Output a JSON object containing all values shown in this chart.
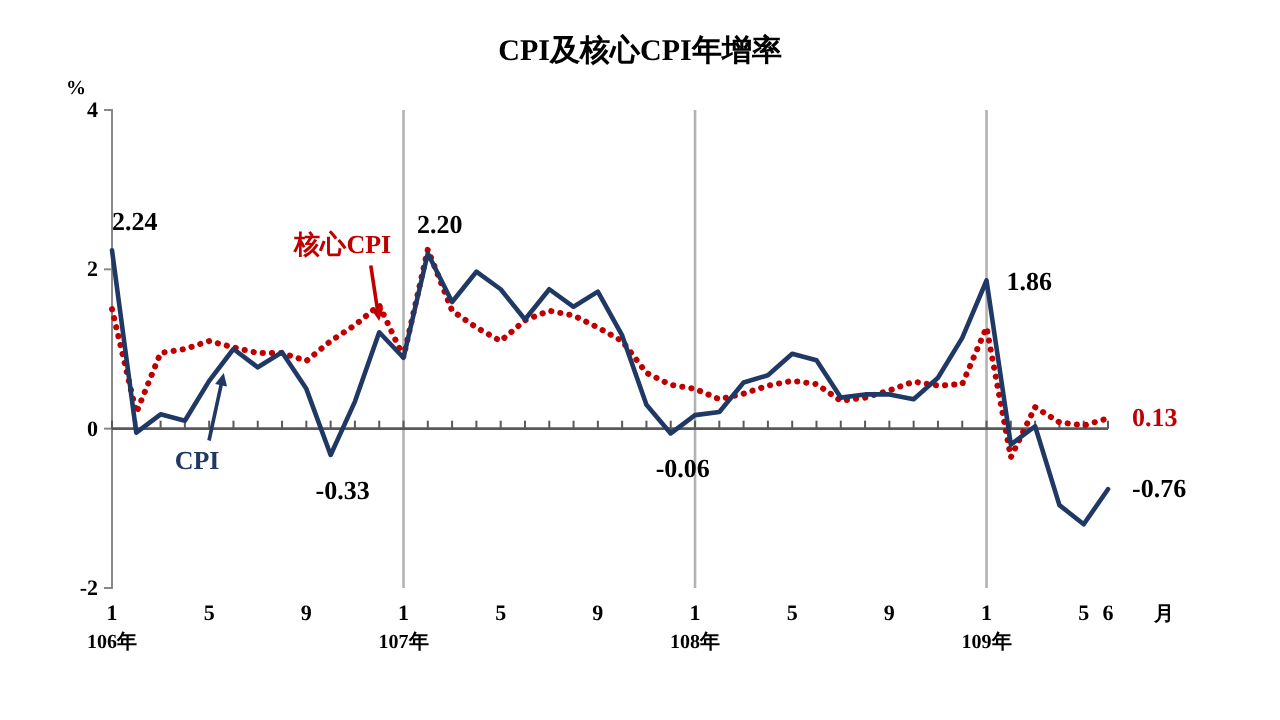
{
  "chart_data": {
    "type": "line",
    "title": "CPI及核心CPI年增率",
    "ylabel": "%",
    "xlabel": "月",
    "categories": [
      "1\n106年",
      null,
      null,
      null,
      "5",
      null,
      null,
      null,
      "9",
      null,
      null,
      null,
      "1\n107年",
      null,
      null,
      null,
      "5",
      null,
      null,
      null,
      "9",
      null,
      null,
      null,
      "1\n108年",
      null,
      null,
      null,
      "5",
      null,
      null,
      null,
      "9",
      null,
      null,
      null,
      "1\n109年",
      null,
      null,
      null,
      "5",
      "6"
    ],
    "ylim": [
      -2,
      4
    ],
    "yticks": [
      -2,
      0,
      2,
      4
    ],
    "ref_lines": [
      {
        "axis": "x",
        "value": "1\n107年",
        "color": "#b3b3b3"
      },
      {
        "axis": "x",
        "value": "1\n108年",
        "color": "#b3b3b3"
      },
      {
        "axis": "x",
        "value": "1\n109年",
        "color": "#b3b3b3"
      },
      {
        "axis": "y",
        "value": 0,
        "color": "#595959"
      }
    ],
    "series": [
      {
        "name": "核心CPI",
        "color": "#c00000",
        "line_style": "dotted",
        "values": [
          1.5,
          0.2,
          0.95,
          1.0,
          1.1,
          1.02,
          0.95,
          0.95,
          0.85,
          1.1,
          1.3,
          1.55,
          0.9,
          2.25,
          1.48,
          1.27,
          1.1,
          1.36,
          1.48,
          1.42,
          1.27,
          1.1,
          0.7,
          0.55,
          0.5,
          0.37,
          0.44,
          0.54,
          0.6,
          0.56,
          0.35,
          0.39,
          0.48,
          0.59,
          0.54,
          0.56,
          1.27,
          -0.36,
          0.27,
          0.08,
          0.04,
          0.13
        ],
        "value_labels": [
          null,
          null,
          null,
          null,
          null,
          null,
          null,
          null,
          null,
          null,
          null,
          null,
          null,
          null,
          null,
          null,
          null,
          null,
          null,
          null,
          null,
          null,
          null,
          null,
          null,
          null,
          null,
          null,
          null,
          null,
          null,
          null,
          null,
          null,
          null,
          null,
          null,
          null,
          null,
          null,
          null,
          "0.13"
        ]
      },
      {
        "name": "CPI",
        "color": "#1f3864",
        "line_style": "solid",
        "values": [
          2.24,
          -0.05,
          0.18,
          0.1,
          0.6,
          1.0,
          0.77,
          0.96,
          0.5,
          -0.33,
          0.34,
          1.21,
          0.89,
          2.2,
          1.59,
          1.97,
          1.75,
          1.37,
          1.75,
          1.53,
          1.72,
          1.17,
          0.3,
          -0.06,
          0.17,
          0.21,
          0.58,
          0.67,
          0.94,
          0.86,
          0.39,
          0.43,
          0.43,
          0.37,
          0.64,
          1.14,
          1.86,
          -0.2,
          0.03,
          -0.96,
          -1.2,
          -0.76
        ],
        "value_labels": [
          "2.24",
          null,
          null,
          null,
          null,
          null,
          null,
          null,
          null,
          "-0.33",
          null,
          null,
          null,
          "2.20",
          null,
          null,
          null,
          null,
          null,
          null,
          null,
          null,
          null,
          "-0.06",
          null,
          null,
          null,
          null,
          null,
          null,
          null,
          null,
          null,
          null,
          null,
          null,
          "1.86",
          null,
          null,
          null,
          null,
          "-0.76"
        ]
      }
    ]
  }
}
